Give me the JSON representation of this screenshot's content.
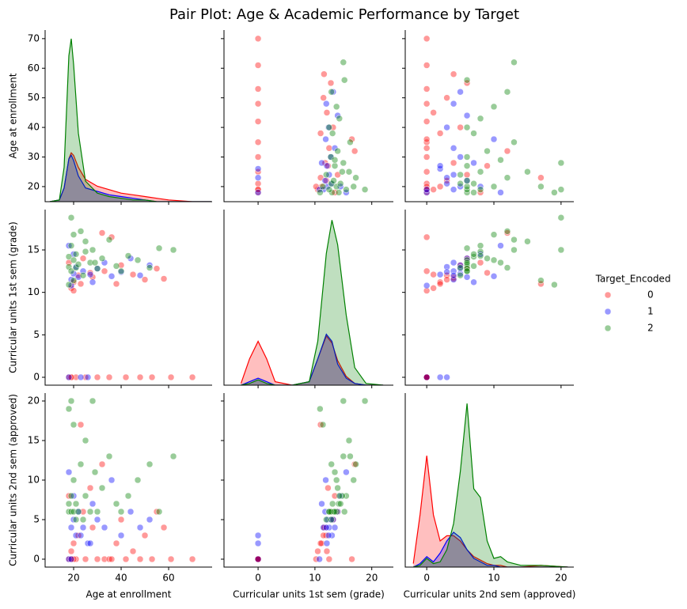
{
  "title": "Pair Plot: Age & Academic Performance by Target",
  "chart_data": {
    "type": "pairplot",
    "legend_title": "Target_Encoded",
    "legend": "right",
    "variables": [
      {
        "name": "Age at enrollment",
        "xlim": [
          8,
          78.3
        ],
        "xticks": [
          20,
          40,
          60
        ],
        "ylim": [
          14.9,
          72.9
        ],
        "yticks": [
          20,
          30,
          40,
          50,
          60,
          70
        ]
      },
      {
        "name": "Curricular units 1st sem (grade)",
        "xlim": [
          -6,
          23.8
        ],
        "xticks": [
          0,
          10,
          20
        ],
        "ylim": [
          -0.93,
          19.75
        ],
        "yticks": [
          0,
          5,
          10,
          15
        ]
      },
      {
        "name": "Curricular units 2nd sem (approved)",
        "xlim": [
          -3.2,
          21.9
        ],
        "xticks": [
          0,
          10,
          20
        ],
        "ylim": [
          -1,
          21
        ],
        "yticks": [
          0,
          5,
          10,
          15,
          20
        ]
      }
    ],
    "series": [
      {
        "name": "0",
        "color": "#ff0000",
        "values": [
          [
            18,
            0,
            0
          ],
          [
            19,
            0,
            0
          ],
          [
            20,
            11.2,
            2
          ],
          [
            21,
            0,
            0
          ],
          [
            22,
            12.0,
            3
          ],
          [
            19,
            10.5,
            1
          ],
          [
            25,
            0,
            0
          ],
          [
            28,
            11.8,
            4
          ],
          [
            30,
            0,
            0
          ],
          [
            33,
            12.5,
            0
          ],
          [
            35,
            0,
            0
          ],
          [
            38,
            11.0,
            2
          ],
          [
            40,
            13.2,
            5
          ],
          [
            42,
            0,
            0
          ],
          [
            45,
            12.1,
            1
          ],
          [
            48,
            0,
            0
          ],
          [
            50,
            11.5,
            3
          ],
          [
            53,
            0,
            0
          ],
          [
            55,
            12.8,
            6
          ],
          [
            58,
            11.6,
            4
          ],
          [
            61,
            0,
            0
          ],
          [
            70,
            0,
            0
          ],
          [
            18,
            13.5,
            8
          ],
          [
            20,
            10.2,
            0
          ],
          [
            24,
            14.0,
            6
          ],
          [
            27,
            12.3,
            9
          ],
          [
            32,
            17.0,
            12
          ],
          [
            23,
            11.0,
            17
          ],
          [
            19,
            0,
            0
          ],
          [
            36,
            16.5,
            0
          ]
        ]
      },
      {
        "name": "1",
        "color": "#0000ff",
        "values": [
          [
            18,
            0,
            0
          ],
          [
            19,
            11.5,
            4
          ],
          [
            20,
            12.2,
            5
          ],
          [
            21,
            13.0,
            3
          ],
          [
            22,
            11.8,
            6
          ],
          [
            24,
            12.5,
            4
          ],
          [
            26,
            0,
            2
          ],
          [
            28,
            11.2,
            7
          ],
          [
            30,
            12.8,
            5
          ],
          [
            33,
            13.5,
            4
          ],
          [
            36,
            11.9,
            10
          ],
          [
            40,
            12.4,
            3
          ],
          [
            44,
            14.0,
            6
          ],
          [
            48,
            12.0,
            4
          ],
          [
            52,
            13.2,
            5
          ],
          [
            19,
            10.8,
            0
          ],
          [
            20,
            14.5,
            8
          ],
          [
            23,
            0,
            3
          ],
          [
            27,
            12.1,
            2
          ],
          [
            18,
            15.5,
            11
          ]
        ]
      },
      {
        "name": "2",
        "color": "#008000",
        "values": [
          [
            18,
            13.0,
            6
          ],
          [
            18,
            14.2,
            7
          ],
          [
            19,
            12.5,
            6
          ],
          [
            19,
            15.5,
            8
          ],
          [
            20,
            13.8,
            6
          ],
          [
            20,
            16.8,
            10
          ],
          [
            21,
            12.9,
            5
          ],
          [
            21,
            14.5,
            7
          ],
          [
            22,
            13.3,
            6
          ],
          [
            23,
            17.2,
            12
          ],
          [
            24,
            12.0,
            5
          ],
          [
            25,
            14.8,
            8
          ],
          [
            27,
            13.5,
            6
          ],
          [
            28,
            15.0,
            20
          ],
          [
            30,
            12.8,
            6
          ],
          [
            32,
            14.0,
            9
          ],
          [
            35,
            16.2,
            13
          ],
          [
            38,
            13.1,
            7
          ],
          [
            40,
            12.5,
            6
          ],
          [
            43,
            14.3,
            8
          ],
          [
            47,
            13.8,
            10
          ],
          [
            52,
            12.9,
            12
          ],
          [
            56,
            15.2,
            6
          ],
          [
            62,
            15.0,
            13
          ],
          [
            19,
            18.8,
            20
          ],
          [
            20,
            11.4,
            17
          ],
          [
            18,
            10.9,
            19
          ],
          [
            25,
            16.0,
            15
          ],
          [
            29,
            13.5,
            11
          ]
        ]
      }
    ],
    "density_lim": [
      0,
      1
    ],
    "kde": [
      {
        "x": [
          10,
          14,
          16,
          18,
          19,
          20,
          22,
          25,
          30,
          35,
          40,
          45,
          50,
          55,
          60,
          70,
          78
        ],
        "density": [
          [
            0,
            0.01,
            0.08,
            0.25,
            0.285,
            0.27,
            0.2,
            0.13,
            0.09,
            0.07,
            0.05,
            0.04,
            0.03,
            0.02,
            0.01,
            0,
            0
          ],
          [
            0,
            0.01,
            0.08,
            0.25,
            0.27,
            0.24,
            0.15,
            0.08,
            0.06,
            0.04,
            0.03,
            0.02,
            0.01,
            0,
            0,
            0,
            0
          ],
          [
            0,
            0.01,
            0.2,
            0.85,
            0.95,
            0.8,
            0.4,
            0.12,
            0.05,
            0.03,
            0.02,
            0.01,
            0.01,
            0,
            0,
            0,
            0
          ]
        ]
      },
      {
        "x": [
          -3,
          -1.5,
          0,
          1.5,
          3,
          6,
          9,
          10.5,
          12,
          13,
          14,
          15.5,
          17,
          19,
          22
        ],
        "density": [
          [
            0.01,
            0.15,
            0.25,
            0.15,
            0.02,
            0,
            0.02,
            0.15,
            0.28,
            0.24,
            0.14,
            0.05,
            0.01,
            0,
            0
          ],
          [
            0,
            0.02,
            0.04,
            0.02,
            0,
            0,
            0.02,
            0.15,
            0.29,
            0.25,
            0.12,
            0.04,
            0.01,
            0,
            0
          ],
          [
            0,
            0.01,
            0.03,
            0.01,
            0,
            0,
            0.02,
            0.25,
            0.75,
            0.94,
            0.8,
            0.4,
            0.1,
            0.01,
            0
          ]
        ]
      },
      {
        "x": [
          -2,
          -1,
          0,
          1,
          2,
          3,
          4,
          5,
          6,
          7,
          8,
          9,
          10,
          11,
          12,
          14,
          17,
          21
        ],
        "density": [
          [
            0.02,
            0.3,
            0.64,
            0.3,
            0.15,
            0.18,
            0.18,
            0.15,
            0.1,
            0.06,
            0.04,
            0.02,
            0.01,
            0.01,
            0,
            0,
            0.01,
            0
          ],
          [
            0,
            0.02,
            0.06,
            0.03,
            0.08,
            0.15,
            0.2,
            0.17,
            0.1,
            0.05,
            0.03,
            0.01,
            0.01,
            0,
            0,
            0,
            0,
            0
          ],
          [
            0,
            0.01,
            0.05,
            0.02,
            0.03,
            0.1,
            0.25,
            0.55,
            0.94,
            0.45,
            0.4,
            0.15,
            0.05,
            0.06,
            0.03,
            0.01,
            0.01,
            0
          ]
        ]
      }
    ]
  }
}
